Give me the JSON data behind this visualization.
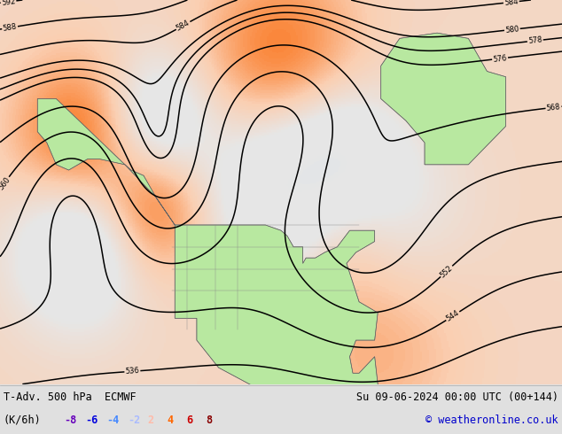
{
  "title_left": "T-Adv. 500 hPa  ECMWF",
  "title_right": "Su 09-06-2024 00:00 UTC (00+144)",
  "legend_label": "(K/6h)",
  "legend_values": [
    -8,
    -6,
    -4,
    -2,
    2,
    4,
    6,
    8
  ],
  "legend_colors_neg": [
    "#6600bb",
    "#0000dd",
    "#4488ff",
    "#aabbff"
  ],
  "legend_colors_pos": [
    "#ffbbaa",
    "#ff6600",
    "#cc0000",
    "#880000"
  ],
  "copyright": "© weatheronline.co.uk",
  "copyright_color": "#0000cc",
  "bg_color": "#e0e0e0",
  "fig_width": 6.34,
  "fig_height": 4.9,
  "dpi": 100,
  "map_bg_color": "#e8e8e8",
  "land_color": "#b8e8a0",
  "ocean_color": "#e0e0e0",
  "contour_color": "#000000",
  "title_fontsize": 8.5,
  "legend_fontsize": 8.5
}
